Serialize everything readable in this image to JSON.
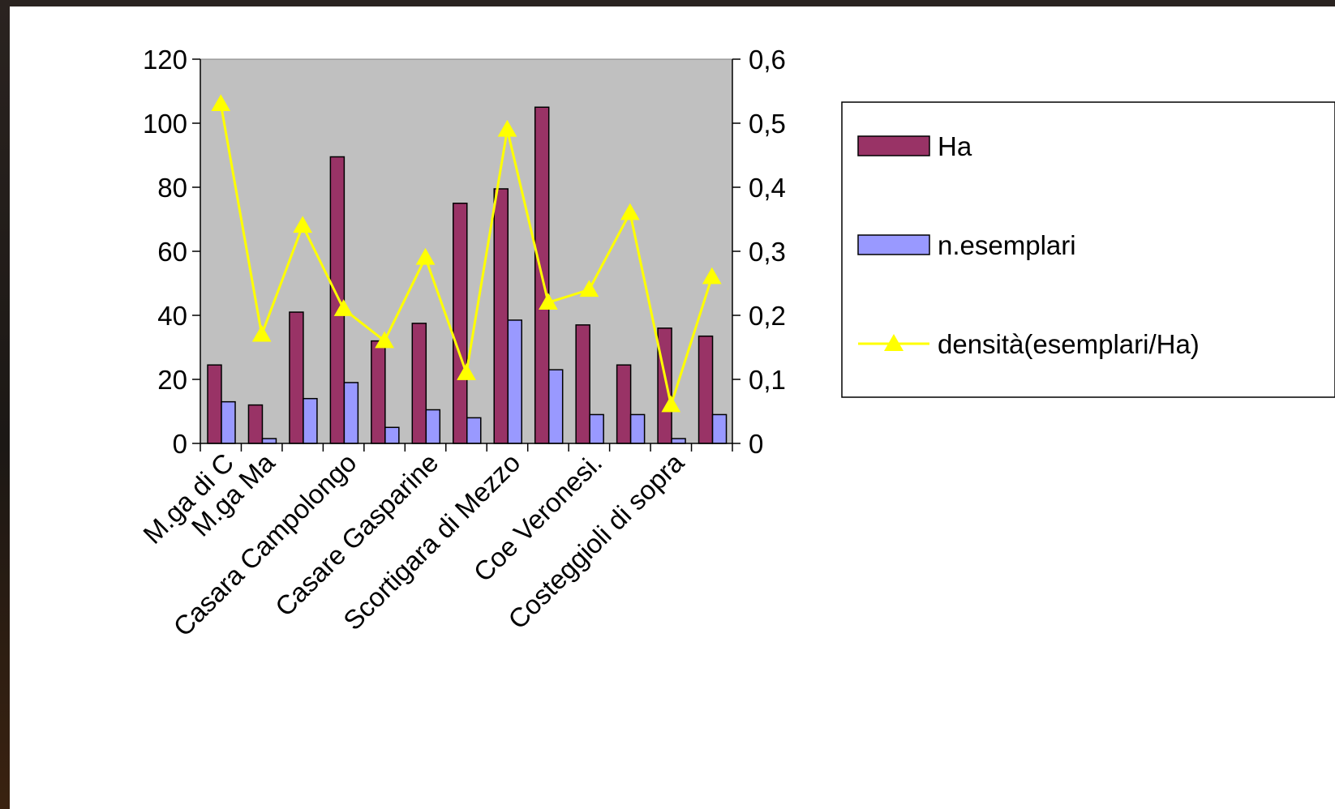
{
  "chart_data": {
    "type": "bar",
    "categories": [
      "M.ga di C",
      "M.ga Ma",
      "",
      "Casara Campolongo",
      "",
      "Casare Gasparine",
      "",
      "Scortigara di Mezzo",
      "",
      "Coe Veronesi.",
      "",
      "Costeggioli di sopra",
      ""
    ],
    "series": [
      {
        "name": "Ha",
        "axis": "left",
        "kind": "bar",
        "values": [
          24.5,
          12,
          41,
          89.5,
          32,
          37.5,
          75,
          79.5,
          105,
          37,
          24.5,
          36,
          33.5
        ]
      },
      {
        "name": "n.esemplari",
        "axis": "left",
        "kind": "bar",
        "values": [
          13,
          1.5,
          14,
          19,
          5,
          10.5,
          8,
          38.5,
          23,
          9,
          9,
          1.5,
          9
        ]
      },
      {
        "name": "densità(esemplari/Ha)",
        "axis": "right",
        "kind": "line",
        "values": [
          0.53,
          0.17,
          0.34,
          0.21,
          0.16,
          0.29,
          0.11,
          0.49,
          0.22,
          0.24,
          0.36,
          0.06,
          0.26
        ]
      }
    ],
    "y_left": {
      "min": 0,
      "max": 120,
      "step": 20,
      "ticks": [
        "0",
        "20",
        "40",
        "60",
        "80",
        "100",
        "120"
      ]
    },
    "y_right": {
      "min": 0,
      "max": 0.6,
      "step": 0.1,
      "ticks": [
        "0",
        "0,1",
        "0,2",
        "0,3",
        "0,4",
        "0,5",
        "0,6"
      ]
    },
    "legend": {
      "position": "right",
      "entries": [
        "Ha",
        "n.esemplari",
        "densità(esemplari/Ha)"
      ]
    },
    "grid": false,
    "colors": {
      "ha_bar": "#993366",
      "esemplari_bar": "#9999ff",
      "density_line": "#ffff00",
      "plot_background": "#c0c0c0"
    }
  }
}
